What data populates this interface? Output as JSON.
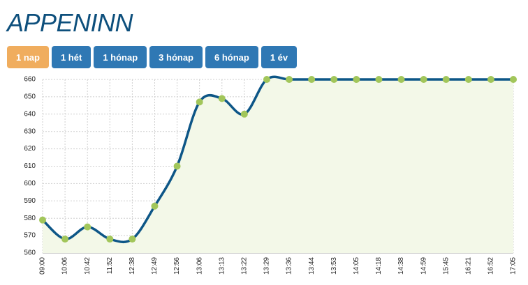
{
  "header": {
    "title": "APPENINN"
  },
  "buttons": {
    "labels": [
      "1 nap",
      "1 hét",
      "1 hónap",
      "3 hónap",
      "6 hónap",
      "1 év"
    ],
    "active": 0,
    "active_color": "#f0ad5e",
    "color": "#2f78b4"
  },
  "chart_data": {
    "type": "line",
    "categories": [
      "09:00",
      "10:06",
      "10:42",
      "11:52",
      "12:38",
      "12:49",
      "12:56",
      "13:06",
      "13:13",
      "13:22",
      "13:29",
      "13:36",
      "13:44",
      "13:53",
      "14:05",
      "14:18",
      "14:38",
      "14:59",
      "15:45",
      "16:21",
      "16:52",
      "17:05"
    ],
    "series": [
      {
        "color": "#0d5687",
        "marker_color": "#a2c65a",
        "fill_color": "#f3f8e8",
        "values": [
          579,
          568,
          575,
          568,
          568,
          587,
          610,
          647,
          649,
          640,
          660,
          660,
          660,
          660,
          660,
          660,
          660,
          660,
          660,
          660,
          660,
          660
        ]
      }
    ],
    "ylim": [
      560,
      660
    ],
    "yticks": [
      560,
      570,
      580,
      590,
      600,
      610,
      620,
      630,
      640,
      650,
      660
    ],
    "grid": true
  }
}
